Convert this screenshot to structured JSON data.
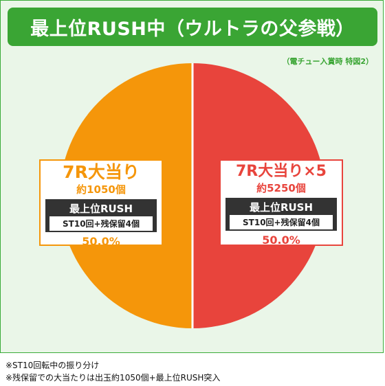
{
  "title": "最上位RUSH中（ウルトラの父参戦）",
  "note": "（電チュー入賞時 特図2）",
  "chart_data": {
    "type": "pie",
    "slices": [
      {
        "label": "7R大当り",
        "amount": "約1050個",
        "rush": "最上位RUSH",
        "rush_detail": "ST10回+残保留4個",
        "percent_text": "50.0%",
        "value": 50.0,
        "color": "#f5960a"
      },
      {
        "label": "7R大当り×5",
        "amount": "約5250個",
        "rush": "最上位RUSH",
        "rush_detail": "ST10回+残保留4個",
        "percent_text": "50.0%",
        "value": 50.0,
        "color": "#e8443c"
      }
    ]
  },
  "footnotes": [
    "※ST10回転中の振り分け",
    "※残保留での大当たりは出玉約1050個+最上位RUSH突入"
  ],
  "colors": {
    "title_bg": "#3aa534",
    "panel_bg": "#eaf6e8",
    "left": "#f5960a",
    "right": "#e8443c"
  }
}
